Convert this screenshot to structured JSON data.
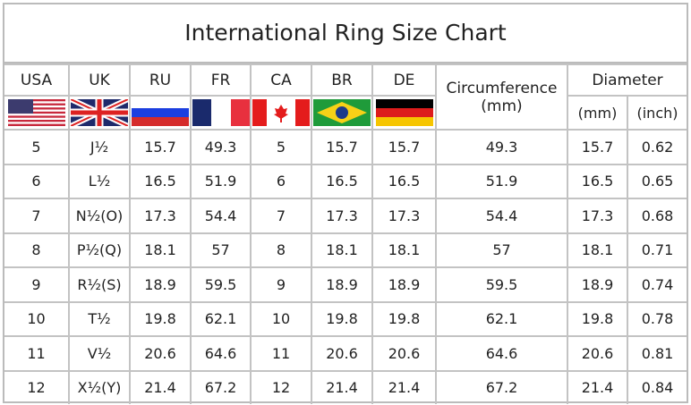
{
  "title": "International Ring Size Chart",
  "headers": {
    "usa": "USA",
    "uk": "UK",
    "ru": "RU",
    "fr": "FR",
    "ca": "CA",
    "br": "BR",
    "de": "DE",
    "circumference": "Circumference",
    "circumference_unit": "(mm)",
    "diameter": "Diameter",
    "diameter_mm": "(mm)",
    "diameter_inch": "(inch)"
  },
  "flags": [
    "us-flag-icon",
    "uk-flag-icon",
    "russia-flag-icon",
    "france-flag-icon",
    "canada-flag-icon",
    "brazil-flag-icon",
    "germany-flag-icon"
  ],
  "rows": [
    [
      "5",
      "J½",
      "15.7",
      "49.3",
      "5",
      "15.7",
      "15.7",
      "49.3",
      "15.7",
      "0.62"
    ],
    [
      "6",
      "L½",
      "16.5",
      "51.9",
      "6",
      "16.5",
      "16.5",
      "51.9",
      "16.5",
      "0.65"
    ],
    [
      "7",
      "N½(O)",
      "17.3",
      "54.4",
      "7",
      "17.3",
      "17.3",
      "54.4",
      "17.3",
      "0.68"
    ],
    [
      "8",
      "P½(Q)",
      "18.1",
      "57",
      "8",
      "18.1",
      "18.1",
      "57",
      "18.1",
      "0.71"
    ],
    [
      "9",
      "R½(S)",
      "18.9",
      "59.5",
      "9",
      "18.9",
      "18.9",
      "59.5",
      "18.9",
      "0.74"
    ],
    [
      "10",
      "T½",
      "19.8",
      "62.1",
      "10",
      "19.8",
      "19.8",
      "62.1",
      "19.8",
      "0.78"
    ],
    [
      "11",
      "V½",
      "20.6",
      "64.6",
      "11",
      "20.6",
      "20.6",
      "64.6",
      "20.6",
      "0.81"
    ],
    [
      "12",
      "X½(Y)",
      "21.4",
      "67.2",
      "12",
      "21.4",
      "21.4",
      "67.2",
      "21.4",
      "0.84"
    ]
  ]
}
